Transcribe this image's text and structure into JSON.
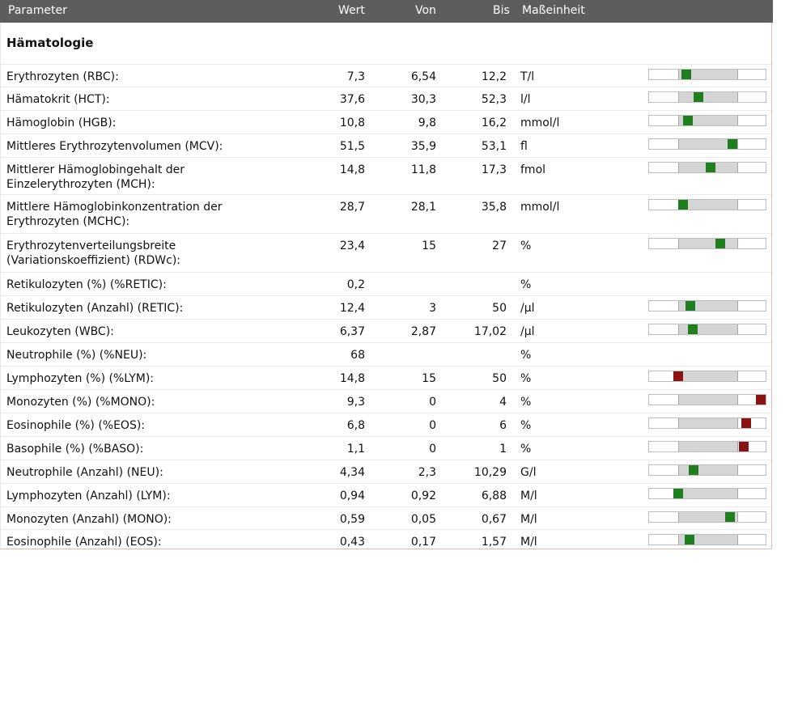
{
  "header": {
    "parameter": "Parameter",
    "wert": "Wert",
    "von": "Von",
    "bis": "Bis",
    "einheit": "Maßeinheit"
  },
  "section_title": "Hämatologie",
  "colors": {
    "header_bg": "#5d5d5d",
    "in_range": "#1f7f1f",
    "out_of_range": "#8a1414",
    "range_band": "#d5d5d5"
  },
  "rows": [
    {
      "name": "Erythrozyten (RBC):",
      "wert": "7,3",
      "von": "6,54",
      "bis": "12,2",
      "unit": "T/l",
      "bar": true,
      "status": "ok"
    },
    {
      "name": "Hämatokrit (HCT):",
      "wert": "37,6",
      "von": "30,3",
      "bis": "52,3",
      "unit": "l/l",
      "bar": true,
      "status": "ok"
    },
    {
      "name": "Hämoglobin (HGB):",
      "wert": "10,8",
      "von": "9,8",
      "bis": "16,2",
      "unit": "mmol/l",
      "bar": true,
      "status": "ok"
    },
    {
      "name": "Mittleres Erythrozytenvolumen (MCV):",
      "wert": "51,5",
      "von": "35,9",
      "bis": "53,1",
      "unit": "fl",
      "bar": true,
      "status": "ok"
    },
    {
      "name": "Mittlerer Hämoglobingehalt der\nEinzelerythrozyten (MCH):",
      "wert": "14,8",
      "von": "11,8",
      "bis": "17,3",
      "unit": "fmol",
      "bar": true,
      "status": "ok"
    },
    {
      "name": "Mittlere Hämoglobinkonzentration der\nErythrozyten (MCHC):",
      "wert": "28,7",
      "von": "28,1",
      "bis": "35,8",
      "unit": "mmol/l",
      "bar": true,
      "status": "ok"
    },
    {
      "name": "Erythrozytenverteilungsbreite\n(Variationskoeffizient) (RDWc):",
      "wert": "23,4",
      "von": "15",
      "bis": "27",
      "unit": "%",
      "bar": true,
      "status": "ok"
    },
    {
      "name": "Retikulozyten (%) (%RETIC):",
      "wert": "0,2",
      "von": "",
      "bis": "",
      "unit": "%",
      "bar": false,
      "status": ""
    },
    {
      "name": "Retikulozyten (Anzahl) (RETIC):",
      "wert": "12,4",
      "von": "3",
      "bis": "50",
      "unit": "/µl",
      "bar": true,
      "status": "ok"
    },
    {
      "name": "Leukozyten (WBC):",
      "wert": "6,37",
      "von": "2,87",
      "bis": "17,02",
      "unit": "/µl",
      "bar": true,
      "status": "ok"
    },
    {
      "name": "Neutrophile (%) (%NEU):",
      "wert": "68",
      "von": "",
      "bis": "",
      "unit": "%",
      "bar": false,
      "status": ""
    },
    {
      "name": "Lymphozyten (%) (%LYM):",
      "wert": "14,8",
      "von": "15",
      "bis": "50",
      "unit": "%",
      "bar": true,
      "status": "bad"
    },
    {
      "name": "Monozyten (%) (%MONO):",
      "wert": "9,3",
      "von": "0",
      "bis": "4",
      "unit": "%",
      "bar": true,
      "status": "bad"
    },
    {
      "name": "Eosinophile (%) (%EOS):",
      "wert": "6,8",
      "von": "0",
      "bis": "6",
      "unit": "%",
      "bar": true,
      "status": "bad"
    },
    {
      "name": "Basophile (%) (%BASO):",
      "wert": "1,1",
      "von": "0",
      "bis": "1",
      "unit": "%",
      "bar": true,
      "status": "bad"
    },
    {
      "name": "Neutrophile (Anzahl) (NEU):",
      "wert": "4,34",
      "von": "2,3",
      "bis": "10,29",
      "unit": "G/l",
      "bar": true,
      "status": "ok"
    },
    {
      "name": "Lymphozyten (Anzahl) (LYM):",
      "wert": "0,94",
      "von": "0,92",
      "bis": "6,88",
      "unit": "M/l",
      "bar": true,
      "status": "ok"
    },
    {
      "name": "Monozyten (Anzahl) (MONO):",
      "wert": "0,59",
      "von": "0,05",
      "bis": "0,67",
      "unit": "M/l",
      "bar": true,
      "status": "ok"
    },
    {
      "name": "Eosinophile (Anzahl) (EOS):",
      "wert": "0,43",
      "von": "0,17",
      "bis": "1,57",
      "unit": "M/l",
      "bar": true,
      "status": "ok"
    }
  ]
}
